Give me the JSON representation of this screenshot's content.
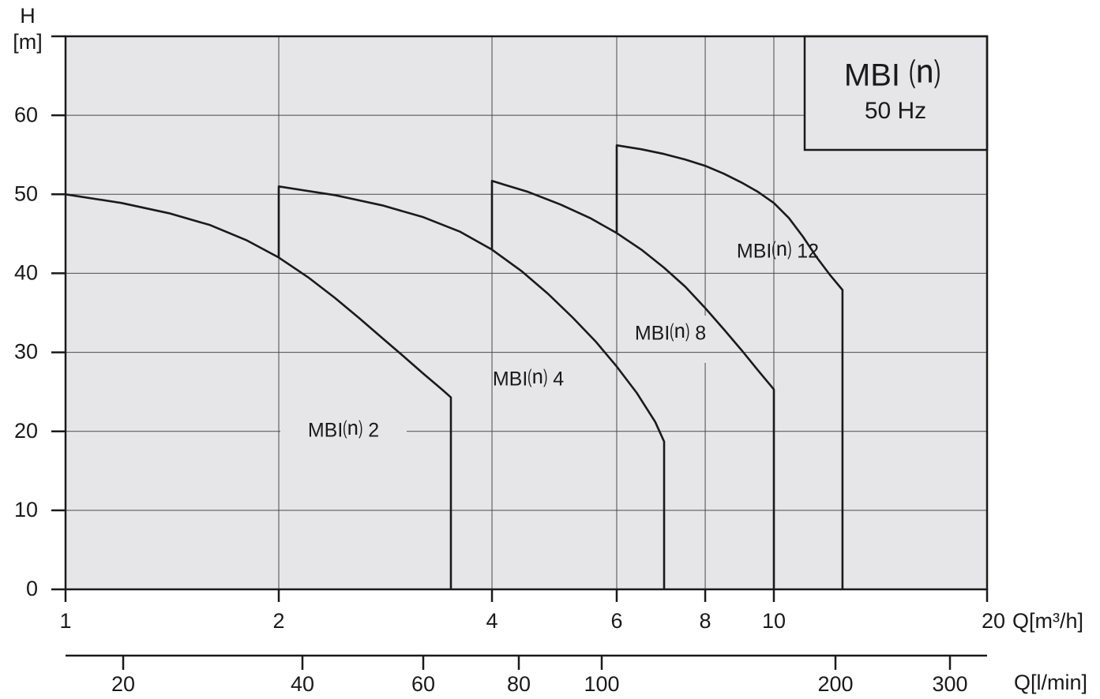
{
  "chart_data": {
    "type": "line",
    "x_scale": "log",
    "y_axis": {
      "label": "H",
      "unit": "[m]",
      "range": [
        0,
        70
      ],
      "ticks": [
        0,
        10,
        20,
        30,
        40,
        50,
        60
      ]
    },
    "x_axis": {
      "label": "Q[m³/h]",
      "range": [
        1,
        20
      ],
      "ticks": [
        1,
        2,
        4,
        6,
        8,
        10,
        20
      ]
    },
    "x_axis_secondary": {
      "label": "Q[l/min]",
      "ticks": [
        20,
        40,
        60,
        80,
        100,
        200,
        300
      ]
    },
    "grid": true,
    "legend": {
      "title": "MBI ⒩",
      "subtitle": "50 Hz",
      "placement": "top-right"
    },
    "series": [
      {
        "name": "MBI⒩ 2",
        "x": [
          1.0,
          1.2,
          1.4,
          1.6,
          1.8,
          2.0,
          2.2,
          2.4,
          2.6,
          2.8,
          3.0,
          3.2,
          3.4,
          3.5
        ],
        "y": [
          50.0,
          48.9,
          47.6,
          46.1,
          44.2,
          42.0,
          39.5,
          36.9,
          34.3,
          31.8,
          29.5,
          27.3,
          25.3,
          24.3
        ],
        "end_drop_to": 0
      },
      {
        "name": "MBI⒩ 4",
        "x": [
          2.0,
          2.4,
          2.8,
          3.2,
          3.6,
          4.0,
          4.4,
          4.8,
          5.2,
          5.6,
          6.0,
          6.4,
          6.8,
          7.0
        ],
        "y": [
          51.0,
          49.9,
          48.6,
          47.1,
          45.3,
          43.0,
          40.3,
          37.4,
          34.4,
          31.4,
          28.2,
          24.9,
          21.2,
          18.7
        ],
        "start_rise_from": 42
      },
      {
        "name": "MBI⒩ 8",
        "x": [
          4.0,
          4.5,
          5.0,
          5.5,
          6.0,
          6.5,
          7.0,
          7.5,
          8.0,
          8.5,
          9.0,
          9.5,
          10.0
        ],
        "y": [
          51.7,
          50.3,
          48.7,
          47.0,
          45.1,
          43.0,
          40.7,
          38.3,
          35.6,
          32.9,
          30.3,
          27.7,
          25.3
        ],
        "start_rise_from": 43
      },
      {
        "name": "MBI⒩ 12",
        "x": [
          6.0,
          6.5,
          7.0,
          7.5,
          8.0,
          8.5,
          9.0,
          9.5,
          10.0,
          10.5,
          11.0,
          11.5,
          12.0,
          12.5
        ],
        "y": [
          56.2,
          55.7,
          55.1,
          54.4,
          53.6,
          52.6,
          51.5,
          50.3,
          48.9,
          47.0,
          44.6,
          42.0,
          39.8,
          37.9
        ],
        "start_rise_from": 45
      }
    ]
  },
  "annotations": [
    {
      "text": "MBI⒩ 2",
      "series": 0
    },
    {
      "text": "MBI⒩ 4",
      "series": 1
    },
    {
      "text": "MBI⒩ 8",
      "series": 2
    },
    {
      "text": "MBI⒩ 12",
      "series": 3
    }
  ],
  "colors": {
    "plot_bg": "#e6e6e9",
    "line": "#1a1a1a",
    "grid": "#4a4a4a"
  }
}
